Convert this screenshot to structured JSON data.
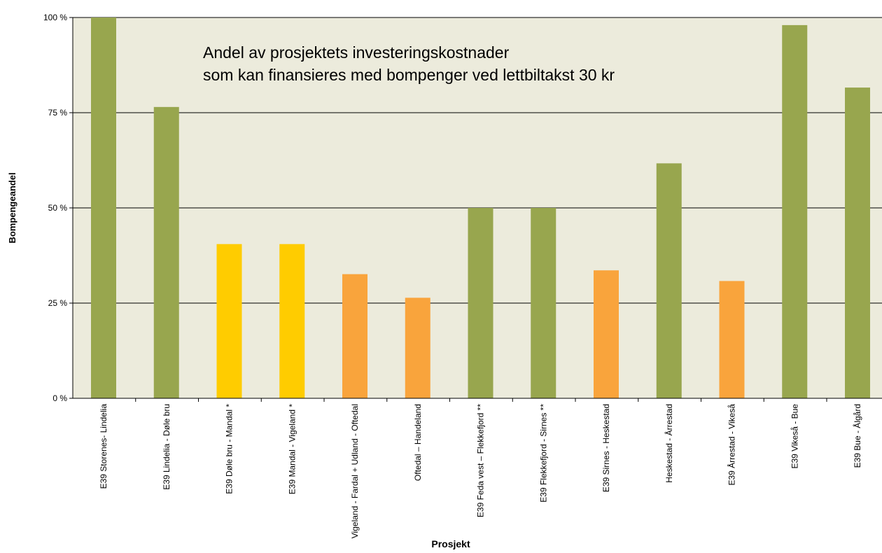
{
  "chart_data": {
    "type": "bar",
    "title": [
      "Andel av prosjektets investeringskostnader",
      "som kan finansieres med bompenger ved lettbiltakst 30 kr"
    ],
    "x_label": "Prosjekt",
    "y_label": "Bompengeandel",
    "categories": [
      "E39 Storenes- Lindelia",
      "E39 Lindelia - Døle bru",
      "E39 Døle bru - Mandal *",
      "E39 Mandal - Vigeland *",
      "Vigeland - Fardal + Udland - Oftedal",
      "Oftedal – Handeland",
      "E39 Feda vest – Flekkefjord **",
      "E39 Flekkefjord - Sirnes **",
      "E39 Sirnes - Heskestad",
      "Heskestad - Årrestad",
      "E39 Årrestad - Vikeså",
      "E39 Vikeså - Bue",
      "E39 Bue - Ålgård"
    ],
    "values": [
      100,
      76.5,
      40.5,
      40.5,
      32.6,
      26.4,
      50,
      50,
      33.6,
      61.7,
      30.8,
      98,
      81.6
    ],
    "colors": [
      "#98a64e",
      "#98a64e",
      "#ffcc00",
      "#ffcc00",
      "#f9a43c",
      "#f9a43c",
      "#98a64e",
      "#98a64e",
      "#f9a43c",
      "#98a64e",
      "#f9a43c",
      "#98a64e",
      "#98a64e"
    ],
    "ylim": [
      0,
      100
    ],
    "yticks": [
      {
        "value": 0,
        "label": "0 %"
      },
      {
        "value": 25,
        "label": "25 %"
      },
      {
        "value": 50,
        "label": "50 %"
      },
      {
        "value": 75,
        "label": "75 %"
      },
      {
        "value": 100,
        "label": "100 %"
      }
    ],
    "grid": true
  }
}
